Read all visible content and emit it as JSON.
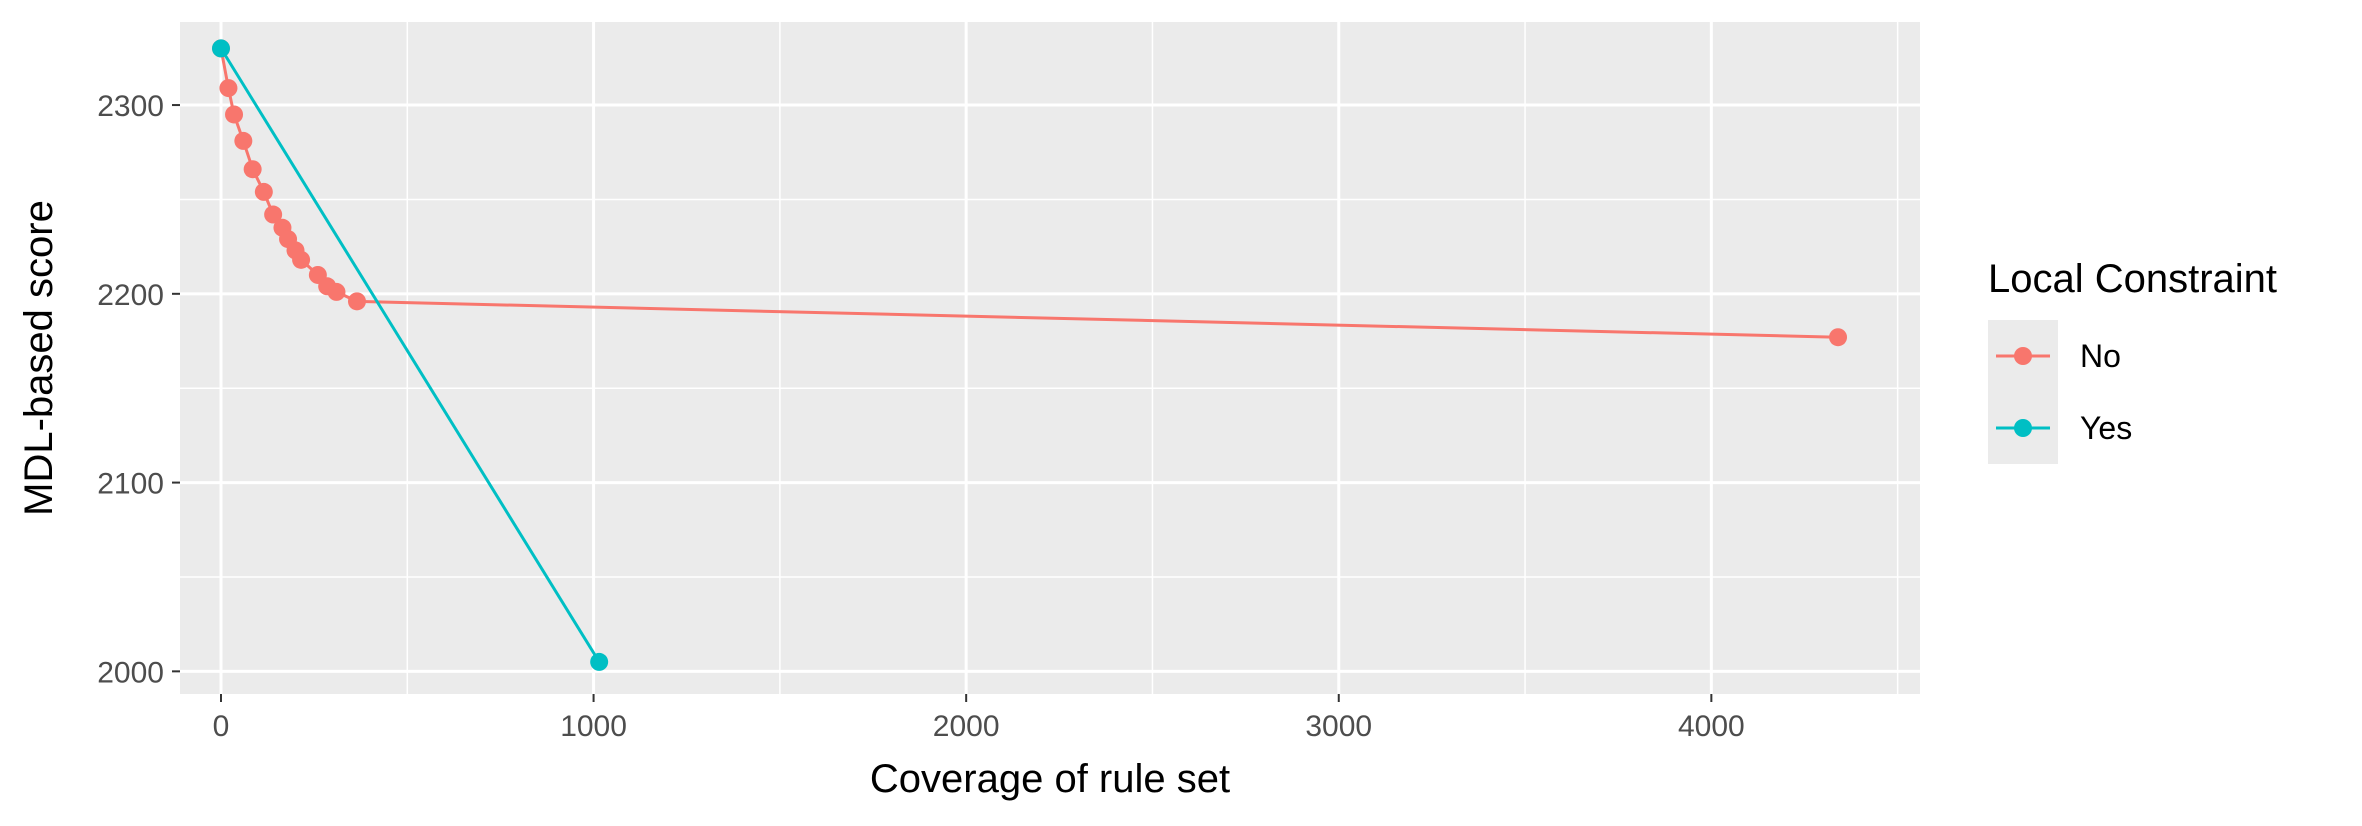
{
  "chart_data": {
    "type": "line",
    "title": "",
    "xlabel": "Coverage of rule set",
    "ylabel": "MDL-based score",
    "xlim": [
      -110,
      4560
    ],
    "ylim": [
      1988,
      2344
    ],
    "x_ticks": [
      0,
      1000,
      2000,
      3000,
      4000
    ],
    "x_tick_labels": [
      "0",
      "1000",
      "2000",
      "3000",
      "4000"
    ],
    "x_minor_ticks": [
      500,
      1500,
      2500,
      3500,
      4500
    ],
    "y_ticks": [
      2000,
      2100,
      2200,
      2300
    ],
    "y_tick_labels": [
      "2000",
      "2100",
      "2200",
      "2300"
    ],
    "y_minor_ticks": [
      2050,
      2150,
      2250
    ],
    "grid": true,
    "legend": {
      "title": "Local Constraint",
      "position": "right"
    },
    "series": [
      {
        "name": "No",
        "color": "#F8766D",
        "points": [
          [
            0,
            2330
          ],
          [
            20,
            2309
          ],
          [
            35,
            2295
          ],
          [
            60,
            2281
          ],
          [
            85,
            2266
          ],
          [
            115,
            2254
          ],
          [
            140,
            2242
          ],
          [
            165,
            2235
          ],
          [
            180,
            2229
          ],
          [
            200,
            2223
          ],
          [
            215,
            2218
          ],
          [
            260,
            2210
          ],
          [
            285,
            2204
          ],
          [
            310,
            2201
          ],
          [
            365,
            2196
          ],
          [
            4340,
            2177
          ]
        ]
      },
      {
        "name": "Yes",
        "color": "#00BFC4",
        "points": [
          [
            0,
            2330
          ],
          [
            1015,
            2005
          ]
        ]
      }
    ]
  }
}
